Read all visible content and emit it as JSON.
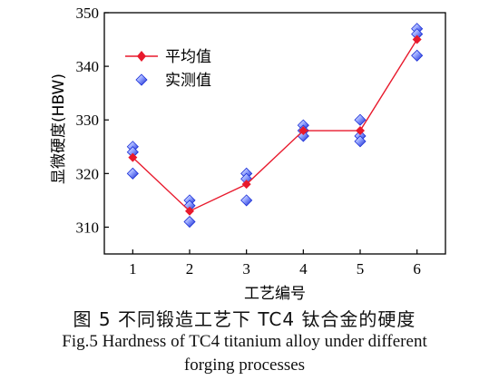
{
  "chart_data": {
    "type": "line",
    "xlabel": "工艺编号",
    "ylabel": "显微硬度(HBW)",
    "categories": [
      "1",
      "2",
      "3",
      "4",
      "5",
      "6"
    ],
    "xlim": [
      0.5,
      6.5
    ],
    "ylim": [
      305,
      350
    ],
    "yticks": [
      310,
      320,
      330,
      340,
      350
    ],
    "grid": false,
    "legend_position": "top-left",
    "series": [
      {
        "name": "平均值",
        "kind": "line-marker",
        "color": "#e8192c",
        "values": [
          323,
          313,
          318,
          328,
          328,
          345
        ]
      },
      {
        "name": "实测值",
        "kind": "scatter",
        "color": "#1a2fd8",
        "points": [
          [
            1,
            325
          ],
          [
            1,
            324
          ],
          [
            1,
            320
          ],
          [
            2,
            315
          ],
          [
            2,
            314
          ],
          [
            2,
            311
          ],
          [
            3,
            320
          ],
          [
            3,
            319
          ],
          [
            3,
            315
          ],
          [
            4,
            329
          ],
          [
            4,
            328
          ],
          [
            4,
            327
          ],
          [
            5,
            330
          ],
          [
            5,
            327
          ],
          [
            5,
            326
          ],
          [
            6,
            347
          ],
          [
            6,
            346
          ],
          [
            6,
            342
          ]
        ]
      }
    ]
  },
  "caption": {
    "cn": "图 5 不同锻造工艺下 TC4 钛合金的硬度",
    "en_line1": "Fig.5 Hardness of TC4 titanium alloy under different",
    "en_line2": "forging processes"
  }
}
